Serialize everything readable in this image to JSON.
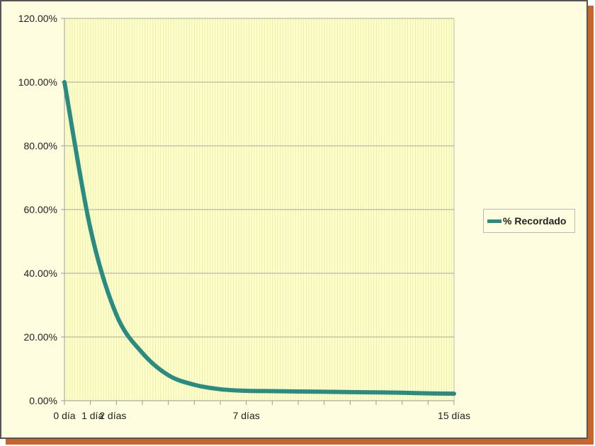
{
  "chart_data": {
    "type": "line",
    "title": "",
    "xlabel": "",
    "ylabel": "",
    "categories": [
      "0 día",
      "1 día",
      "2 días",
      "",
      "",
      "",
      "",
      "7 días",
      "",
      "",
      "",
      "",
      "",
      "",
      "",
      "15 días"
    ],
    "x": [
      0,
      1,
      2,
      3,
      4,
      5,
      6,
      7,
      8,
      9,
      10,
      11,
      12,
      13,
      14,
      15
    ],
    "series": [
      {
        "name": "% Recordado",
        "values": [
          100,
          54,
          27,
          15,
          8,
          5,
          3.6,
          3.1,
          3.0,
          2.9,
          2.8,
          2.7,
          2.6,
          2.5,
          2.3,
          2.2
        ],
        "color": "#2a8c80"
      }
    ],
    "ylim": [
      0,
      120
    ],
    "yticks": [
      "0.00%",
      "20.00%",
      "40.00%",
      "60.00%",
      "80.00%",
      "100.00%",
      "120.00%"
    ],
    "grid": "horizontal",
    "legend": "right",
    "background": "#fffde0",
    "plot_background": "#ffffc8"
  }
}
